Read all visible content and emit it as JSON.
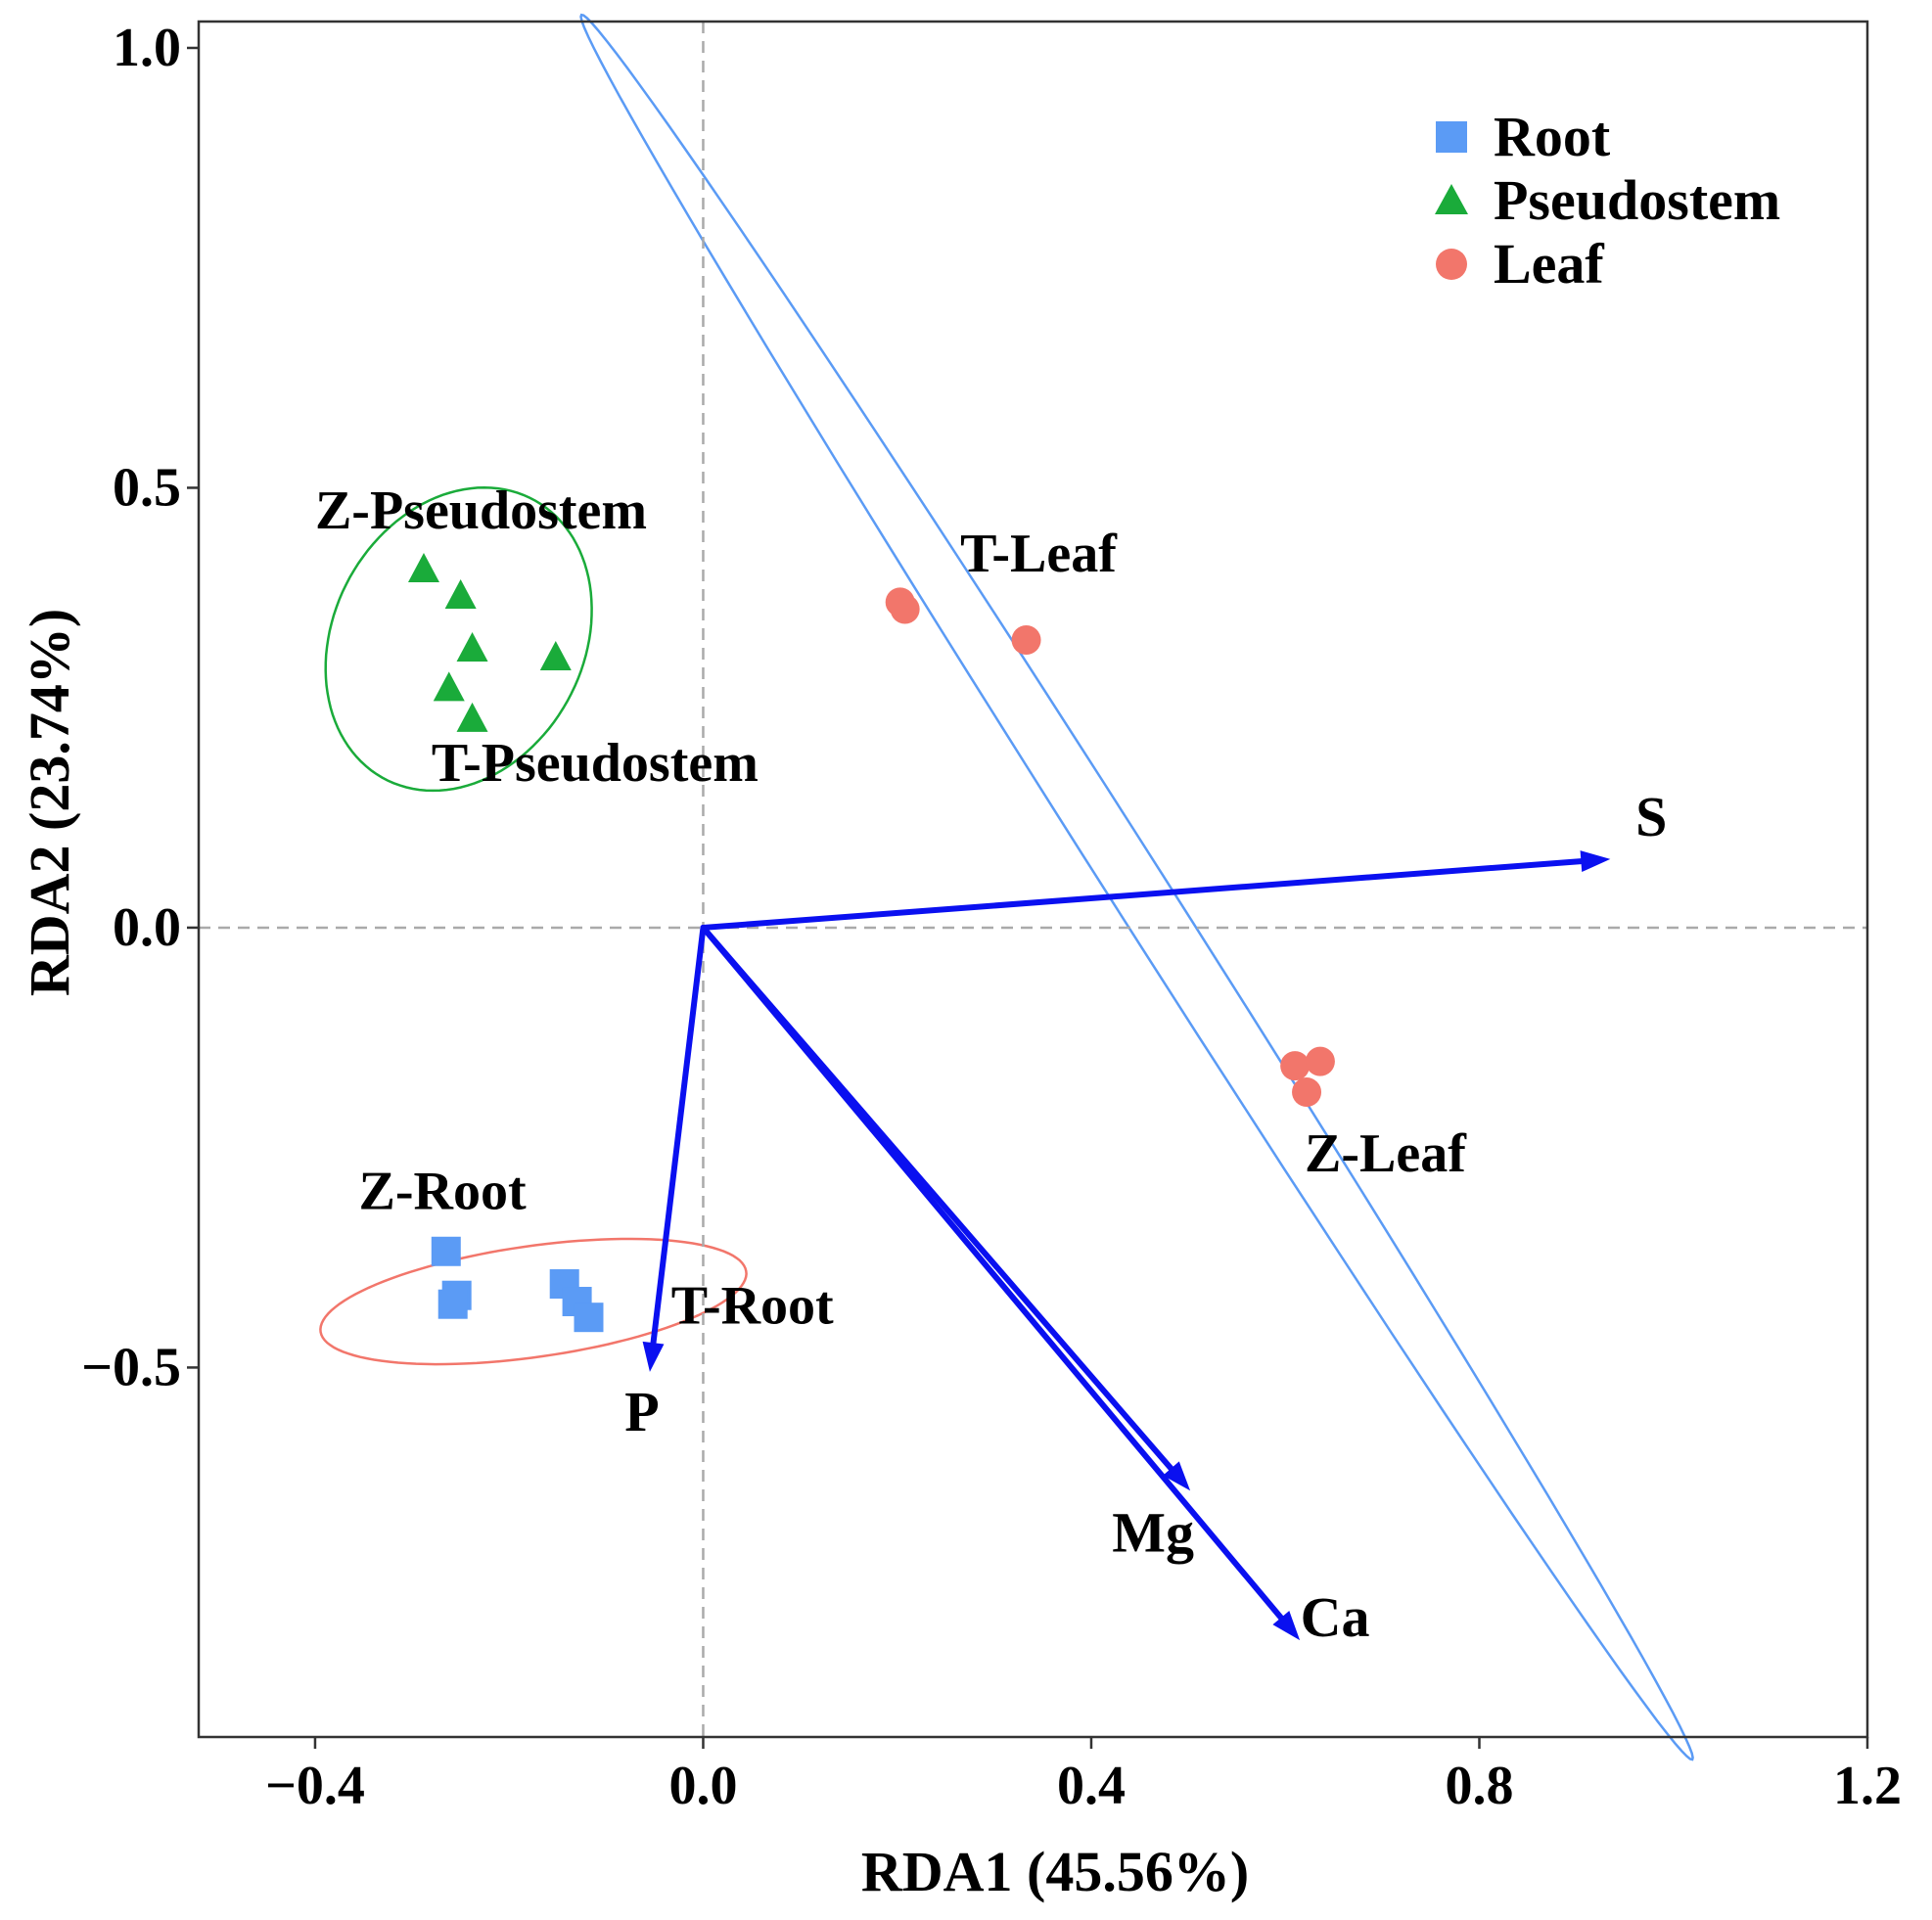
{
  "chart_data": {
    "type": "scatter",
    "xlabel": "RDA1 (45.56%)",
    "ylabel": "RDA2 (23.74%)",
    "xlim": [
      -0.52,
      1.2
    ],
    "ylim": [
      -0.92,
      1.03
    ],
    "xticks": [
      -0.4,
      0.0,
      0.4,
      0.8,
      1.2
    ],
    "xtick_labels": [
      "−0.4",
      "0.0",
      "0.4",
      "0.8",
      "1.2"
    ],
    "yticks": [
      -0.5,
      0.0,
      0.5,
      1.0
    ],
    "ytick_labels": [
      "−0.5",
      "0.0",
      "0.5",
      "1.0"
    ],
    "reference_lines": {
      "x": 0,
      "y": 0,
      "style": "dashed"
    },
    "legend": {
      "placement": "top-right",
      "entries": [
        {
          "label": "Root",
          "marker": "square",
          "color": "#5b9bf5"
        },
        {
          "label": "Pseudostem",
          "marker": "triangle",
          "color": "#1aab3a"
        },
        {
          "label": "Leaf",
          "marker": "circle",
          "color": "#f2766b"
        }
      ]
    },
    "series": [
      {
        "name": "Root",
        "marker": "square",
        "color": "#5b9bf5",
        "points": [
          {
            "x": -0.265,
            "y": -0.368
          },
          {
            "x": -0.254,
            "y": -0.418
          },
          {
            "x": -0.258,
            "y": -0.428
          },
          {
            "x": -0.143,
            "y": -0.405
          },
          {
            "x": -0.13,
            "y": -0.425
          },
          {
            "x": -0.118,
            "y": -0.443
          }
        ]
      },
      {
        "name": "Pseudostem",
        "marker": "triangle",
        "color": "#1aab3a",
        "points": [
          {
            "x": -0.288,
            "y": 0.407
          },
          {
            "x": -0.25,
            "y": 0.377
          },
          {
            "x": -0.238,
            "y": 0.317
          },
          {
            "x": -0.262,
            "y": 0.272
          },
          {
            "x": -0.238,
            "y": 0.237
          },
          {
            "x": -0.152,
            "y": 0.307
          }
        ]
      },
      {
        "name": "Leaf",
        "marker": "circle",
        "color": "#f2766b",
        "points": [
          {
            "x": 0.203,
            "y": 0.37
          },
          {
            "x": 0.208,
            "y": 0.362
          },
          {
            "x": 0.333,
            "y": 0.327
          },
          {
            "x": 0.61,
            "y": -0.157
          },
          {
            "x": 0.636,
            "y": -0.152
          },
          {
            "x": 0.622,
            "y": -0.187
          }
        ]
      }
    ],
    "ellipses": [
      {
        "group": "Root",
        "color": "#f2766b",
        "cx": -0.175,
        "cy": -0.425,
        "rx": 0.222,
        "ry": 0.063,
        "angle_deg": 9
      },
      {
        "group": "Pseudostem",
        "color": "#1aab3a",
        "cx": -0.252,
        "cy": 0.328,
        "rx": 0.131,
        "ry": 0.177,
        "angle_deg": -20
      },
      {
        "group": "Leaf",
        "color": "#5b9bf5",
        "cx": 0.447,
        "cy": 0.046,
        "rx": 1.145,
        "ry": 0.03,
        "angle_deg": -60
      }
    ],
    "vectors": [
      {
        "label": "S",
        "x": 0.935,
        "y": 0.078,
        "color": "#0a10f0"
      },
      {
        "label": "P",
        "x": -0.055,
        "y": -0.505,
        "color": "#0a10f0"
      },
      {
        "label": "Mg",
        "x": 0.502,
        "y": -0.64,
        "color": "#0a10f0"
      },
      {
        "label": "Ca",
        "x": 0.615,
        "y": -0.81,
        "color": "#0a10f0"
      }
    ],
    "annotations": [
      {
        "text": "Z-Pseudostem",
        "x": -0.4,
        "y": 0.454
      },
      {
        "text": "T-Pseudostem",
        "x": -0.28,
        "y": 0.167
      },
      {
        "text": "T-Leaf",
        "x": 0.265,
        "y": 0.405
      },
      {
        "text": "Z-Leaf",
        "x": 0.62,
        "y": -0.277
      },
      {
        "text": "Z-Root",
        "x": -0.355,
        "y": -0.32
      },
      {
        "text": "T-Root",
        "x": -0.033,
        "y": -0.45
      }
    ]
  }
}
